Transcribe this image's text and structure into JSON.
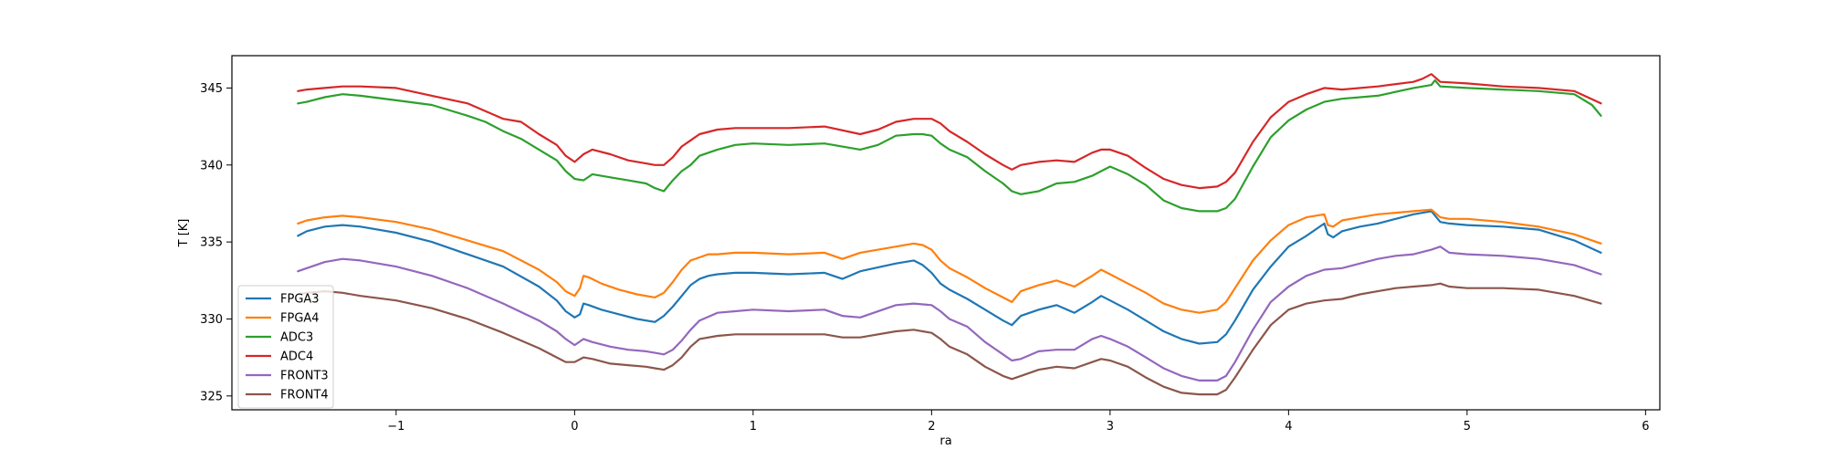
{
  "chart_data": {
    "type": "line",
    "title": "",
    "xlabel": "ra",
    "ylabel": "T [K]",
    "xlim": [
      -1.92,
      6.08
    ],
    "ylim": [
      324.1,
      347.1
    ],
    "xticks": [
      -1,
      0,
      1,
      2,
      3,
      4,
      5,
      6
    ],
    "xtick_labels": [
      "−1",
      "0",
      "1",
      "2",
      "3",
      "4",
      "5",
      "6"
    ],
    "yticks": [
      325,
      330,
      335,
      340,
      345
    ],
    "ytick_labels": [
      "325",
      "330",
      "335",
      "340",
      "345"
    ],
    "grid": false,
    "legend_position": "lower-left",
    "series": [
      {
        "name": "FPGA3",
        "color": "#1f77b4",
        "x": [
          -1.55,
          -1.5,
          -1.4,
          -1.3,
          -1.2,
          -1.0,
          -0.8,
          -0.6,
          -0.4,
          -0.2,
          -0.1,
          -0.05,
          0.0,
          0.03,
          0.05,
          0.08,
          0.15,
          0.25,
          0.35,
          0.45,
          0.5,
          0.55,
          0.6,
          0.65,
          0.7,
          0.75,
          0.8,
          0.9,
          1.0,
          1.2,
          1.4,
          1.5,
          1.6,
          1.8,
          1.9,
          1.95,
          2.0,
          2.05,
          2.1,
          2.2,
          2.3,
          2.4,
          2.45,
          2.5,
          2.55,
          2.6,
          2.7,
          2.8,
          2.9,
          2.95,
          3.0,
          3.1,
          3.2,
          3.3,
          3.4,
          3.5,
          3.6,
          3.65,
          3.7,
          3.8,
          3.9,
          4.0,
          4.1,
          4.2,
          4.22,
          4.25,
          4.3,
          4.4,
          4.5,
          4.6,
          4.7,
          4.8,
          4.85,
          4.9,
          5.0,
          5.2,
          5.4,
          5.6,
          5.75
        ],
        "y": [
          335.4,
          335.7,
          336.0,
          336.1,
          336.0,
          335.6,
          335.0,
          334.2,
          333.4,
          332.1,
          331.2,
          330.5,
          330.1,
          330.3,
          331.0,
          330.9,
          330.6,
          330.3,
          330.0,
          329.8,
          330.2,
          330.8,
          331.5,
          332.2,
          332.6,
          332.8,
          332.9,
          333.0,
          333.0,
          332.9,
          333.0,
          332.6,
          333.1,
          333.6,
          333.8,
          333.5,
          333.0,
          332.3,
          331.9,
          331.3,
          330.6,
          329.9,
          329.6,
          330.2,
          330.4,
          330.6,
          330.9,
          330.4,
          331.1,
          331.5,
          331.2,
          330.6,
          329.9,
          329.2,
          328.7,
          328.4,
          328.5,
          329.0,
          329.9,
          331.9,
          333.4,
          334.7,
          335.4,
          336.2,
          335.5,
          335.3,
          335.7,
          336.0,
          336.2,
          336.5,
          336.8,
          337.0,
          336.3,
          336.2,
          336.1,
          336.0,
          335.8,
          335.1,
          334.3
        ]
      },
      {
        "name": "FPGA4",
        "color": "#ff7f0e",
        "x": [
          -1.55,
          -1.5,
          -1.4,
          -1.3,
          -1.2,
          -1.0,
          -0.8,
          -0.6,
          -0.4,
          -0.2,
          -0.1,
          -0.05,
          0.0,
          0.03,
          0.05,
          0.08,
          0.15,
          0.25,
          0.35,
          0.45,
          0.5,
          0.55,
          0.6,
          0.65,
          0.7,
          0.75,
          0.8,
          0.9,
          1.0,
          1.2,
          1.4,
          1.5,
          1.6,
          1.8,
          1.9,
          1.95,
          2.0,
          2.05,
          2.1,
          2.2,
          2.3,
          2.4,
          2.45,
          2.5,
          2.55,
          2.6,
          2.7,
          2.8,
          2.9,
          2.95,
          3.0,
          3.1,
          3.2,
          3.3,
          3.4,
          3.5,
          3.6,
          3.65,
          3.7,
          3.8,
          3.9,
          4.0,
          4.1,
          4.2,
          4.22,
          4.25,
          4.3,
          4.4,
          4.5,
          4.6,
          4.7,
          4.8,
          4.85,
          4.9,
          5.0,
          5.2,
          5.4,
          5.6,
          5.75
        ],
        "y": [
          336.2,
          336.4,
          336.6,
          336.7,
          336.6,
          336.3,
          335.8,
          335.1,
          334.4,
          333.2,
          332.4,
          331.8,
          331.5,
          332.0,
          332.8,
          332.7,
          332.3,
          331.9,
          331.6,
          331.4,
          331.7,
          332.4,
          333.2,
          333.8,
          334.0,
          334.2,
          334.2,
          334.3,
          334.3,
          334.2,
          334.3,
          333.9,
          334.3,
          334.7,
          334.9,
          334.8,
          334.5,
          333.8,
          333.3,
          332.7,
          332.0,
          331.4,
          331.1,
          331.8,
          332.0,
          332.2,
          332.5,
          332.1,
          332.8,
          333.2,
          332.9,
          332.3,
          331.7,
          331.0,
          330.6,
          330.4,
          330.6,
          331.1,
          332.0,
          333.8,
          335.1,
          336.1,
          336.6,
          336.8,
          336.1,
          336.0,
          336.4,
          336.6,
          336.8,
          336.9,
          337.0,
          337.1,
          336.6,
          336.5,
          336.5,
          336.3,
          336.0,
          335.5,
          334.9
        ]
      },
      {
        "name": "ADC3",
        "color": "#2ca02c",
        "x": [
          -1.55,
          -1.5,
          -1.4,
          -1.3,
          -1.2,
          -1.0,
          -0.8,
          -0.6,
          -0.5,
          -0.4,
          -0.3,
          -0.2,
          -0.1,
          -0.05,
          0.0,
          0.05,
          0.1,
          0.2,
          0.3,
          0.4,
          0.45,
          0.5,
          0.55,
          0.6,
          0.65,
          0.7,
          0.8,
          0.9,
          1.0,
          1.2,
          1.4,
          1.6,
          1.7,
          1.8,
          1.9,
          1.95,
          2.0,
          2.05,
          2.1,
          2.2,
          2.3,
          2.4,
          2.45,
          2.5,
          2.6,
          2.7,
          2.8,
          2.9,
          2.95,
          3.0,
          3.1,
          3.2,
          3.3,
          3.4,
          3.5,
          3.6,
          3.65,
          3.7,
          3.8,
          3.9,
          4.0,
          4.1,
          4.2,
          4.3,
          4.5,
          4.7,
          4.8,
          4.82,
          4.85,
          5.0,
          5.2,
          5.4,
          5.6,
          5.7,
          5.75
        ],
        "y": [
          344.0,
          344.1,
          344.4,
          344.6,
          344.5,
          344.2,
          343.9,
          343.2,
          342.8,
          342.2,
          341.7,
          341.0,
          340.3,
          339.6,
          339.1,
          339.0,
          339.4,
          339.2,
          339.0,
          338.8,
          338.5,
          338.3,
          339.0,
          339.6,
          340.0,
          340.6,
          341.0,
          341.3,
          341.4,
          341.3,
          341.4,
          341.0,
          341.3,
          341.9,
          342.0,
          342.0,
          341.9,
          341.4,
          341.0,
          340.5,
          339.6,
          338.8,
          338.3,
          338.1,
          338.3,
          338.8,
          338.9,
          339.3,
          339.6,
          339.9,
          339.4,
          338.7,
          337.7,
          337.2,
          337.0,
          337.0,
          337.2,
          337.8,
          339.9,
          341.8,
          342.9,
          343.6,
          344.1,
          344.3,
          344.5,
          345.0,
          345.2,
          345.5,
          345.1,
          345.0,
          344.9,
          344.8,
          344.6,
          343.9,
          343.2
        ]
      },
      {
        "name": "ADC4",
        "color": "#d62728",
        "x": [
          -1.55,
          -1.5,
          -1.4,
          -1.3,
          -1.2,
          -1.0,
          -0.8,
          -0.6,
          -0.5,
          -0.4,
          -0.3,
          -0.2,
          -0.1,
          -0.05,
          0.0,
          0.05,
          0.1,
          0.2,
          0.3,
          0.4,
          0.45,
          0.5,
          0.55,
          0.6,
          0.65,
          0.7,
          0.8,
          0.9,
          1.0,
          1.2,
          1.4,
          1.6,
          1.7,
          1.8,
          1.9,
          1.95,
          2.0,
          2.05,
          2.1,
          2.2,
          2.3,
          2.4,
          2.45,
          2.5,
          2.6,
          2.7,
          2.8,
          2.9,
          2.95,
          3.0,
          3.1,
          3.2,
          3.3,
          3.4,
          3.5,
          3.6,
          3.65,
          3.7,
          3.8,
          3.9,
          4.0,
          4.1,
          4.2,
          4.3,
          4.5,
          4.7,
          4.75,
          4.8,
          4.82,
          4.85,
          5.0,
          5.2,
          5.4,
          5.6,
          5.75
        ],
        "y": [
          344.8,
          344.9,
          345.0,
          345.1,
          345.1,
          345.0,
          344.5,
          344.0,
          343.5,
          343.0,
          342.8,
          342.0,
          341.3,
          340.6,
          340.2,
          340.7,
          341.0,
          340.7,
          340.3,
          340.1,
          340.0,
          340.0,
          340.5,
          341.2,
          341.6,
          342.0,
          342.3,
          342.4,
          342.4,
          342.4,
          342.5,
          342.0,
          342.3,
          342.8,
          343.0,
          343.0,
          343.0,
          342.7,
          342.2,
          341.5,
          340.7,
          340.0,
          339.7,
          340.0,
          340.2,
          340.3,
          340.2,
          340.8,
          341.0,
          341.0,
          340.6,
          339.8,
          339.1,
          338.7,
          338.5,
          338.6,
          338.9,
          339.5,
          341.5,
          343.1,
          344.1,
          344.6,
          345.0,
          344.9,
          345.1,
          345.4,
          345.6,
          345.9,
          345.7,
          345.4,
          345.3,
          345.1,
          345.0,
          344.8,
          344.0
        ]
      },
      {
        "name": "FRONT3",
        "color": "#9467bd",
        "x": [
          -1.55,
          -1.5,
          -1.4,
          -1.3,
          -1.2,
          -1.0,
          -0.8,
          -0.6,
          -0.4,
          -0.2,
          -0.1,
          -0.05,
          0.0,
          0.05,
          0.1,
          0.2,
          0.3,
          0.4,
          0.45,
          0.5,
          0.55,
          0.6,
          0.65,
          0.7,
          0.8,
          0.9,
          1.0,
          1.2,
          1.4,
          1.5,
          1.6,
          1.8,
          1.9,
          2.0,
          2.05,
          2.1,
          2.2,
          2.3,
          2.4,
          2.45,
          2.5,
          2.6,
          2.7,
          2.8,
          2.9,
          2.95,
          3.0,
          3.1,
          3.2,
          3.3,
          3.4,
          3.5,
          3.6,
          3.65,
          3.7,
          3.8,
          3.9,
          4.0,
          4.1,
          4.2,
          4.3,
          4.4,
          4.5,
          4.6,
          4.7,
          4.8,
          4.85,
          4.9,
          5.0,
          5.2,
          5.4,
          5.6,
          5.75
        ],
        "y": [
          333.1,
          333.3,
          333.7,
          333.9,
          333.8,
          333.4,
          332.8,
          332.0,
          331.0,
          329.9,
          329.2,
          328.7,
          328.3,
          328.7,
          328.5,
          328.2,
          328.0,
          327.9,
          327.8,
          327.7,
          328.0,
          328.6,
          329.3,
          329.9,
          330.4,
          330.5,
          330.6,
          330.5,
          330.6,
          330.2,
          330.1,
          330.9,
          331.0,
          330.9,
          330.5,
          330.0,
          329.5,
          328.5,
          327.7,
          327.3,
          327.4,
          327.9,
          328.0,
          328.0,
          328.7,
          328.9,
          328.7,
          328.2,
          327.5,
          326.8,
          326.3,
          326.0,
          326.0,
          326.3,
          327.2,
          329.3,
          331.1,
          332.1,
          332.8,
          333.2,
          333.3,
          333.6,
          333.9,
          334.1,
          334.2,
          334.5,
          334.7,
          334.3,
          334.2,
          334.1,
          333.9,
          333.5,
          332.9
        ]
      },
      {
        "name": "FRONT4",
        "color": "#8c564b",
        "x": [
          -1.55,
          -1.5,
          -1.4,
          -1.3,
          -1.2,
          -1.0,
          -0.8,
          -0.6,
          -0.4,
          -0.2,
          -0.1,
          -0.05,
          0.0,
          0.05,
          0.1,
          0.2,
          0.3,
          0.4,
          0.45,
          0.5,
          0.55,
          0.6,
          0.65,
          0.7,
          0.8,
          0.9,
          1.0,
          1.2,
          1.4,
          1.5,
          1.6,
          1.8,
          1.9,
          2.0,
          2.05,
          2.1,
          2.2,
          2.3,
          2.4,
          2.45,
          2.5,
          2.6,
          2.7,
          2.8,
          2.9,
          2.95,
          3.0,
          3.1,
          3.2,
          3.3,
          3.4,
          3.5,
          3.6,
          3.65,
          3.7,
          3.8,
          3.9,
          4.0,
          4.1,
          4.2,
          4.3,
          4.4,
          4.5,
          4.6,
          4.7,
          4.8,
          4.85,
          4.9,
          5.0,
          5.2,
          5.4,
          5.6,
          5.75
        ],
        "y": [
          331.6,
          331.7,
          331.8,
          331.7,
          331.5,
          331.2,
          330.7,
          330.0,
          329.1,
          328.1,
          327.5,
          327.2,
          327.2,
          327.5,
          327.4,
          327.1,
          327.0,
          326.9,
          326.8,
          326.7,
          327.0,
          327.5,
          328.2,
          328.7,
          328.9,
          329.0,
          329.0,
          329.0,
          329.0,
          328.8,
          328.8,
          329.2,
          329.3,
          329.1,
          328.7,
          328.2,
          327.7,
          326.9,
          326.3,
          326.1,
          326.3,
          326.7,
          326.9,
          326.8,
          327.2,
          327.4,
          327.3,
          326.9,
          326.2,
          325.6,
          325.2,
          325.1,
          325.1,
          325.4,
          326.2,
          328.0,
          329.6,
          330.6,
          331.0,
          331.2,
          331.3,
          331.6,
          331.8,
          332.0,
          332.1,
          332.2,
          332.3,
          332.1,
          332.0,
          332.0,
          331.9,
          331.5,
          331.0
        ]
      }
    ]
  }
}
